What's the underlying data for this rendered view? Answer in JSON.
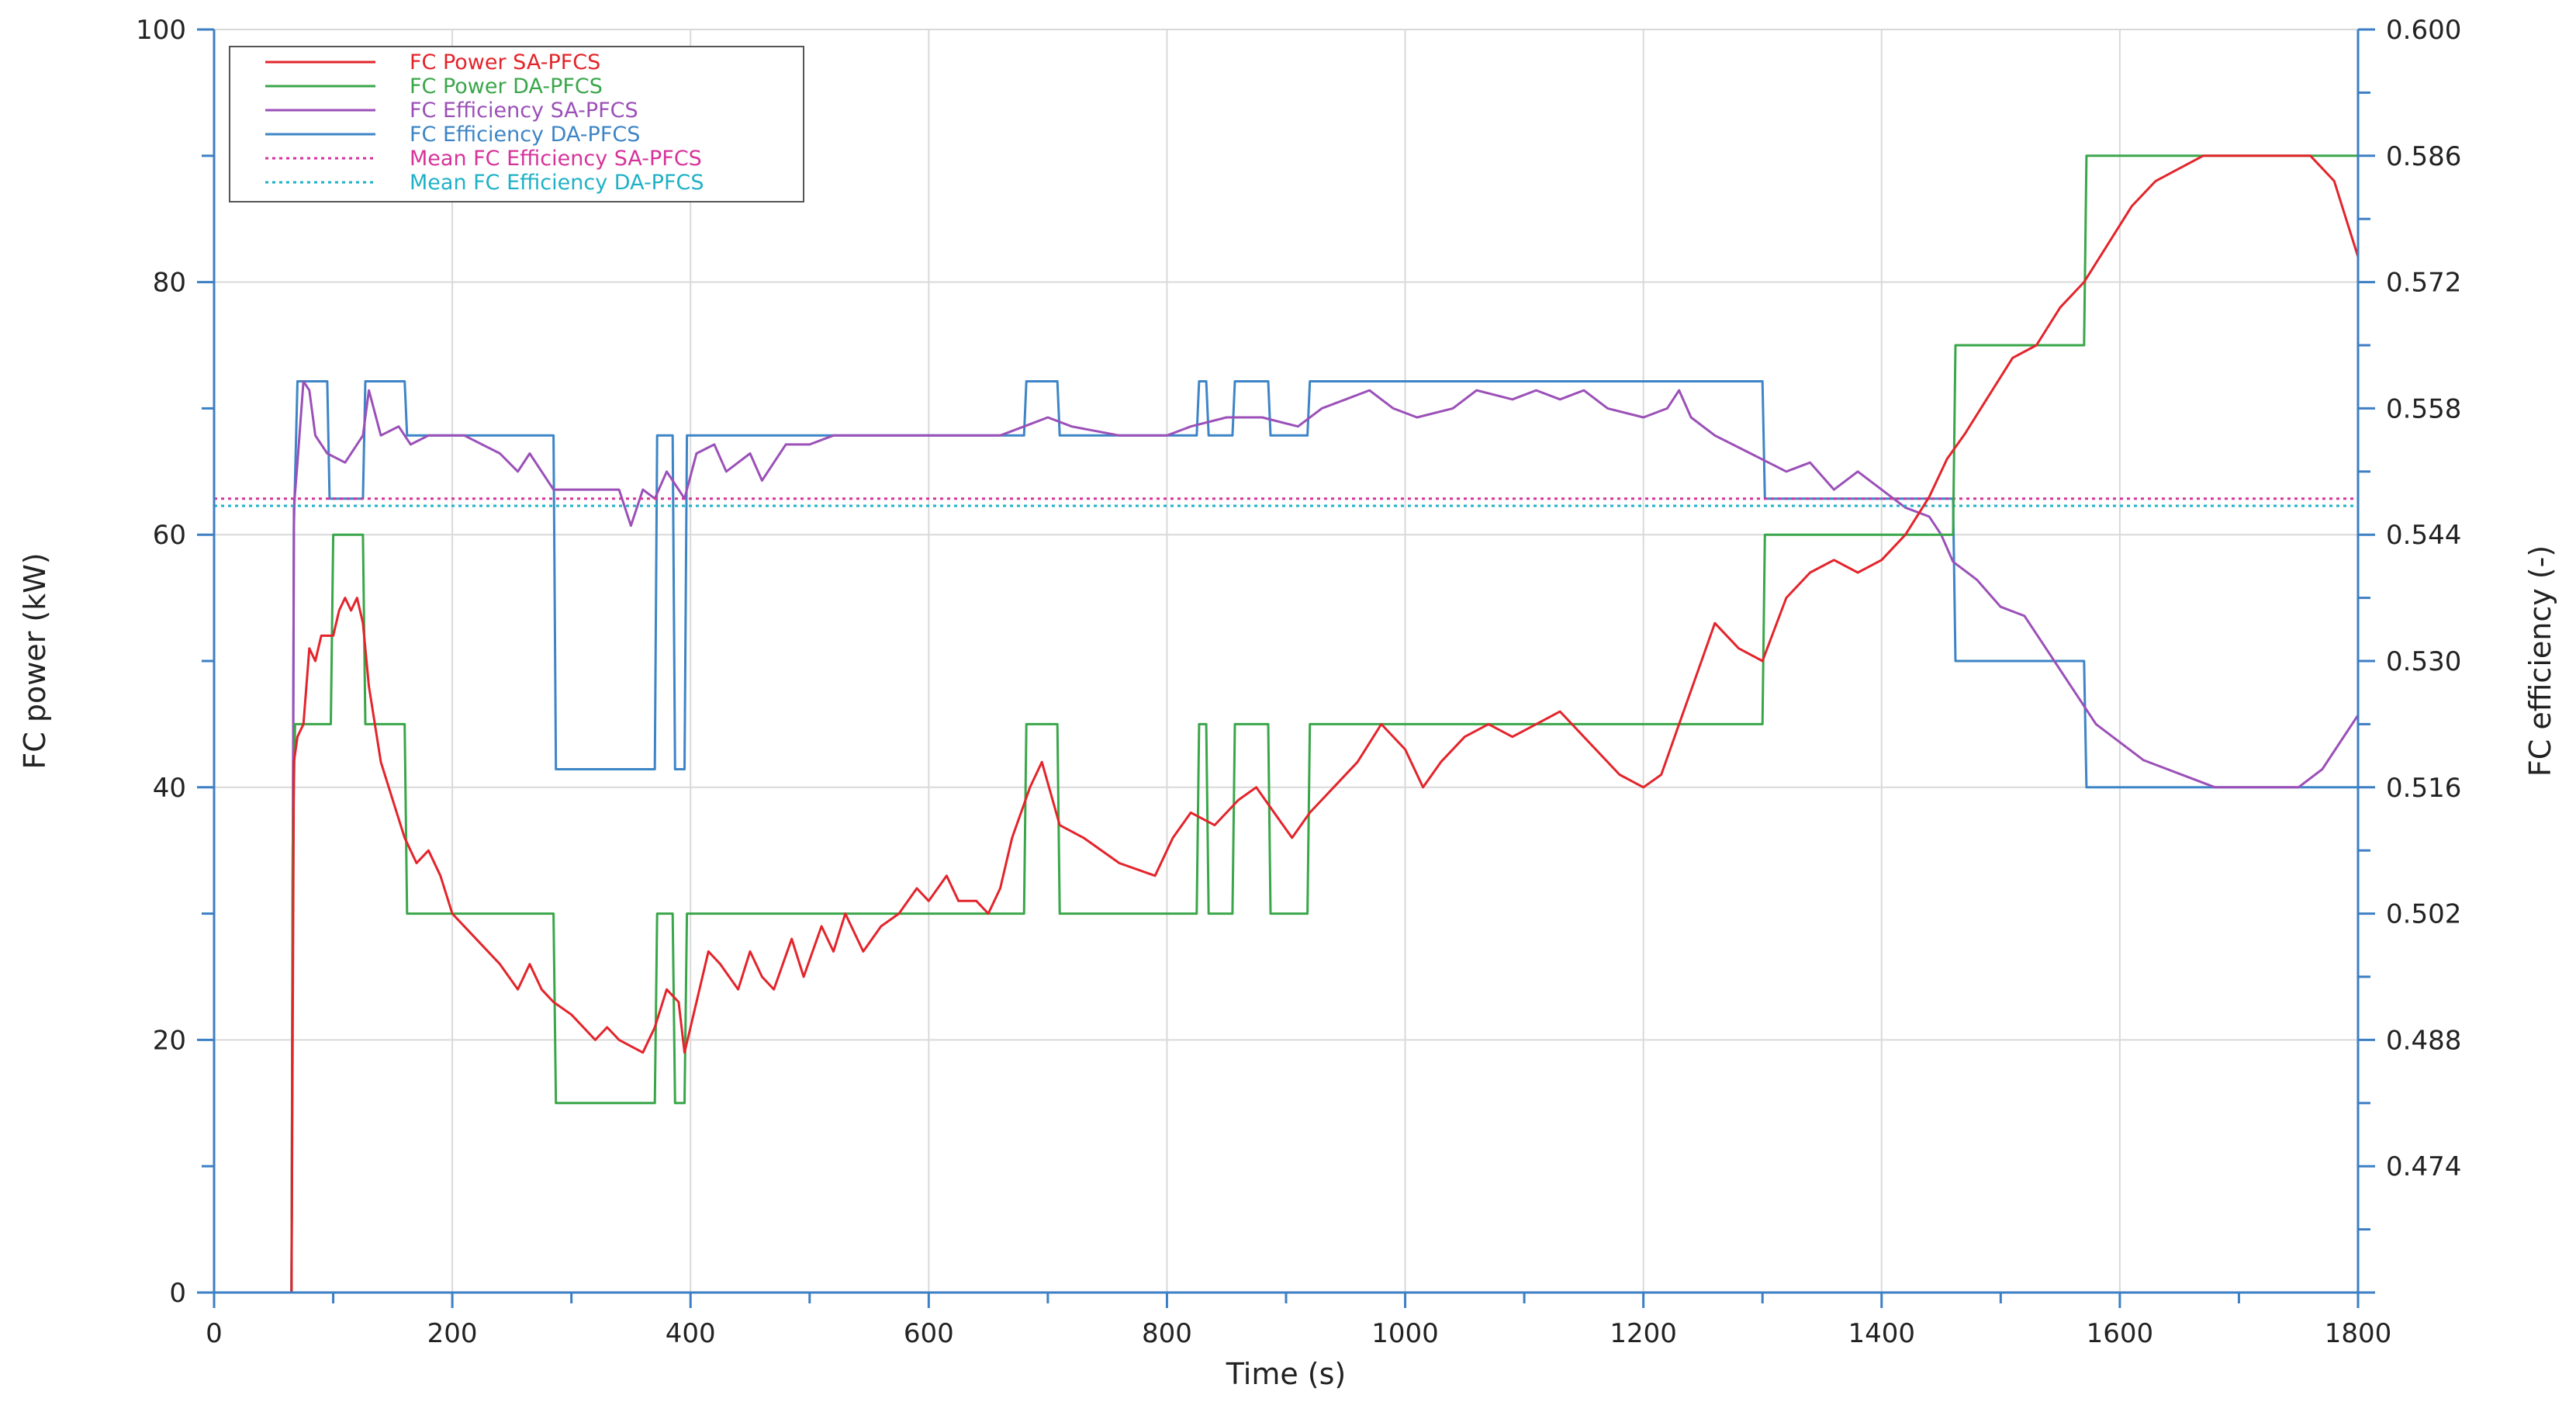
{
  "chart_data": {
    "type": "line",
    "title": "",
    "xlabel": "Time (s)",
    "ylabel_left": "FC power (kW)",
    "ylabel_right": "FC efficiency (-)",
    "xlim": [
      0,
      1800
    ],
    "ylim_left": [
      0,
      100
    ],
    "ylim_right": [
      0.46,
      0.6
    ],
    "x_ticks": [
      0,
      200,
      400,
      600,
      800,
      1000,
      1200,
      1400,
      1600,
      1800
    ],
    "x_tick_labels": [
      "0",
      "200",
      "400",
      "600",
      "800",
      "1000",
      "1200",
      "1400",
      "1600",
      "1800"
    ],
    "y_left_ticks": [
      0,
      20,
      40,
      60,
      80,
      100
    ],
    "y_left_tick_labels": [
      "0",
      "20",
      "40",
      "60",
      "80",
      "100"
    ],
    "y_right_ticks": [
      0.474,
      0.488,
      0.502,
      0.516,
      0.53,
      0.544,
      0.558,
      0.572,
      0.586,
      0.6
    ],
    "y_right_tick_labels": [
      "0.474",
      "0.488",
      "0.502",
      "0.516",
      "0.530",
      "0.544",
      "0.558",
      "0.572",
      "0.586",
      "0.600"
    ],
    "grid": true,
    "legend_position": "top-left",
    "series": [
      {
        "name": "FC Power SA-PFCS",
        "axis": "left",
        "color": "#e3242b",
        "style": "solid",
        "points": [
          [
            0,
            0
          ],
          [
            63,
            0
          ],
          [
            65,
            0
          ],
          [
            67,
            42
          ],
          [
            70,
            44
          ],
          [
            75,
            45
          ],
          [
            80,
            51
          ],
          [
            85,
            50
          ],
          [
            90,
            52
          ],
          [
            100,
            52
          ],
          [
            105,
            54
          ],
          [
            110,
            55
          ],
          [
            115,
            54
          ],
          [
            120,
            55
          ],
          [
            125,
            53
          ],
          [
            130,
            48
          ],
          [
            140,
            42
          ],
          [
            150,
            39
          ],
          [
            160,
            36
          ],
          [
            170,
            34
          ],
          [
            180,
            35
          ],
          [
            190,
            33
          ],
          [
            200,
            30
          ],
          [
            220,
            28
          ],
          [
            240,
            26
          ],
          [
            255,
            24
          ],
          [
            265,
            26
          ],
          [
            275,
            24
          ],
          [
            285,
            23
          ],
          [
            300,
            22
          ],
          [
            320,
            20
          ],
          [
            330,
            21
          ],
          [
            340,
            20
          ],
          [
            360,
            19
          ],
          [
            370,
            21
          ],
          [
            380,
            24
          ],
          [
            390,
            23
          ],
          [
            395,
            19
          ],
          [
            405,
            23
          ],
          [
            415,
            27
          ],
          [
            425,
            26
          ],
          [
            440,
            24
          ],
          [
            450,
            27
          ],
          [
            460,
            25
          ],
          [
            470,
            24
          ],
          [
            485,
            28
          ],
          [
            495,
            25
          ],
          [
            510,
            29
          ],
          [
            520,
            27
          ],
          [
            530,
            30
          ],
          [
            545,
            27
          ],
          [
            560,
            29
          ],
          [
            575,
            30
          ],
          [
            590,
            32
          ],
          [
            600,
            31
          ],
          [
            615,
            33
          ],
          [
            625,
            31
          ],
          [
            640,
            31
          ],
          [
            650,
            30
          ],
          [
            660,
            32
          ],
          [
            670,
            36
          ],
          [
            685,
            40
          ],
          [
            695,
            42
          ],
          [
            710,
            37
          ],
          [
            730,
            36
          ],
          [
            760,
            34
          ],
          [
            790,
            33
          ],
          [
            805,
            36
          ],
          [
            820,
            38
          ],
          [
            840,
            37
          ],
          [
            860,
            39
          ],
          [
            875,
            40
          ],
          [
            890,
            38
          ],
          [
            905,
            36
          ],
          [
            920,
            38
          ],
          [
            940,
            40
          ],
          [
            960,
            42
          ],
          [
            980,
            45
          ],
          [
            1000,
            43
          ],
          [
            1015,
            40
          ],
          [
            1030,
            42
          ],
          [
            1050,
            44
          ],
          [
            1070,
            45
          ],
          [
            1090,
            44
          ],
          [
            1110,
            45
          ],
          [
            1130,
            46
          ],
          [
            1150,
            44
          ],
          [
            1180,
            41
          ],
          [
            1200,
            40
          ],
          [
            1215,
            41
          ],
          [
            1230,
            45
          ],
          [
            1245,
            49
          ],
          [
            1260,
            53
          ],
          [
            1280,
            51
          ],
          [
            1300,
            50
          ],
          [
            1320,
            55
          ],
          [
            1340,
            57
          ],
          [
            1360,
            58
          ],
          [
            1380,
            57
          ],
          [
            1400,
            58
          ],
          [
            1420,
            60
          ],
          [
            1440,
            63
          ],
          [
            1455,
            66
          ],
          [
            1470,
            68
          ],
          [
            1490,
            71
          ],
          [
            1510,
            74
          ],
          [
            1530,
            75
          ],
          [
            1550,
            78
          ],
          [
            1570,
            80
          ],
          [
            1590,
            83
          ],
          [
            1610,
            86
          ],
          [
            1630,
            88
          ],
          [
            1650,
            89
          ],
          [
            1670,
            90
          ],
          [
            1760,
            90
          ],
          [
            1780,
            88
          ],
          [
            1790,
            85
          ],
          [
            1800,
            82
          ]
        ]
      },
      {
        "name": "FC Power DA-PFCS",
        "axis": "left",
        "color": "#3aa64a",
        "style": "solid",
        "points": [
          [
            0,
            0
          ],
          [
            65,
            0
          ],
          [
            66,
            35
          ],
          [
            68,
            45
          ],
          [
            98,
            45
          ],
          [
            100,
            60
          ],
          [
            125,
            60
          ],
          [
            127,
            45
          ],
          [
            160,
            45
          ],
          [
            162,
            30
          ],
          [
            285,
            30
          ],
          [
            287,
            15
          ],
          [
            370,
            15
          ],
          [
            372,
            30
          ],
          [
            385,
            30
          ],
          [
            387,
            15
          ],
          [
            395,
            15
          ],
          [
            397,
            30
          ],
          [
            680,
            30
          ],
          [
            682,
            45
          ],
          [
            708,
            45
          ],
          [
            710,
            30
          ],
          [
            825,
            30
          ],
          [
            827,
            45
          ],
          [
            833,
            45
          ],
          [
            835,
            30
          ],
          [
            855,
            30
          ],
          [
            857,
            45
          ],
          [
            885,
            45
          ],
          [
            887,
            30
          ],
          [
            918,
            30
          ],
          [
            920,
            45
          ],
          [
            1300,
            45
          ],
          [
            1302,
            60
          ],
          [
            1460,
            60
          ],
          [
            1462,
            75
          ],
          [
            1570,
            75
          ],
          [
            1572,
            90
          ],
          [
            1800,
            90
          ]
        ]
      },
      {
        "name": "FC Efficiency SA-PFCS",
        "axis": "right",
        "color": "#9b50b8",
        "style": "solid",
        "points": [
          [
            65,
            0.46
          ],
          [
            67,
            0.547
          ],
          [
            70,
            0.552
          ],
          [
            75,
            0.561
          ],
          [
            80,
            0.56
          ],
          [
            85,
            0.555
          ],
          [
            95,
            0.553
          ],
          [
            110,
            0.552
          ],
          [
            125,
            0.555
          ],
          [
            130,
            0.56
          ],
          [
            140,
            0.555
          ],
          [
            155,
            0.556
          ],
          [
            165,
            0.554
          ],
          [
            180,
            0.555
          ],
          [
            210,
            0.555
          ],
          [
            240,
            0.553
          ],
          [
            255,
            0.551
          ],
          [
            265,
            0.553
          ],
          [
            275,
            0.551
          ],
          [
            285,
            0.549
          ],
          [
            310,
            0.549
          ],
          [
            340,
            0.549
          ],
          [
            350,
            0.545
          ],
          [
            360,
            0.549
          ],
          [
            370,
            0.548
          ],
          [
            380,
            0.551
          ],
          [
            390,
            0.549
          ],
          [
            395,
            0.548
          ],
          [
            405,
            0.553
          ],
          [
            420,
            0.554
          ],
          [
            430,
            0.551
          ],
          [
            440,
            0.552
          ],
          [
            450,
            0.553
          ],
          [
            460,
            0.55
          ],
          [
            470,
            0.552
          ],
          [
            480,
            0.554
          ],
          [
            500,
            0.554
          ],
          [
            520,
            0.555
          ],
          [
            540,
            0.555
          ],
          [
            580,
            0.555
          ],
          [
            620,
            0.555
          ],
          [
            660,
            0.555
          ],
          [
            680,
            0.556
          ],
          [
            700,
            0.557
          ],
          [
            720,
            0.556
          ],
          [
            760,
            0.555
          ],
          [
            800,
            0.555
          ],
          [
            820,
            0.556
          ],
          [
            850,
            0.557
          ],
          [
            880,
            0.557
          ],
          [
            910,
            0.556
          ],
          [
            930,
            0.558
          ],
          [
            950,
            0.559
          ],
          [
            970,
            0.56
          ],
          [
            990,
            0.558
          ],
          [
            1010,
            0.557
          ],
          [
            1040,
            0.558
          ],
          [
            1060,
            0.56
          ],
          [
            1090,
            0.559
          ],
          [
            1110,
            0.56
          ],
          [
            1130,
            0.559
          ],
          [
            1150,
            0.56
          ],
          [
            1170,
            0.558
          ],
          [
            1200,
            0.557
          ],
          [
            1220,
            0.558
          ],
          [
            1230,
            0.56
          ],
          [
            1240,
            0.557
          ],
          [
            1260,
            0.555
          ],
          [
            1290,
            0.553
          ],
          [
            1320,
            0.551
          ],
          [
            1340,
            0.552
          ],
          [
            1360,
            0.549
          ],
          [
            1380,
            0.551
          ],
          [
            1400,
            0.549
          ],
          [
            1420,
            0.547
          ],
          [
            1440,
            0.546
          ],
          [
            1450,
            0.544
          ],
          [
            1460,
            0.541
          ],
          [
            1480,
            0.539
          ],
          [
            1500,
            0.536
          ],
          [
            1520,
            0.535
          ],
          [
            1540,
            0.531
          ],
          [
            1560,
            0.527
          ],
          [
            1580,
            0.523
          ],
          [
            1600,
            0.521
          ],
          [
            1620,
            0.519
          ],
          [
            1640,
            0.518
          ],
          [
            1660,
            0.517
          ],
          [
            1680,
            0.516
          ],
          [
            1750,
            0.516
          ],
          [
            1770,
            0.518
          ],
          [
            1790,
            0.522
          ],
          [
            1800,
            0.524
          ]
        ]
      },
      {
        "name": "FC Efficiency DA-PFCS",
        "axis": "right",
        "color": "#3d85c6",
        "style": "solid",
        "points": [
          [
            65,
            0.46
          ],
          [
            67,
            0.545
          ],
          [
            70,
            0.561
          ],
          [
            95,
            0.561
          ],
          [
            97,
            0.548
          ],
          [
            125,
            0.548
          ],
          [
            127,
            0.561
          ],
          [
            160,
            0.561
          ],
          [
            162,
            0.555
          ],
          [
            285,
            0.555
          ],
          [
            287,
            0.518
          ],
          [
            370,
            0.518
          ],
          [
            372,
            0.555
          ],
          [
            385,
            0.555
          ],
          [
            387,
            0.518
          ],
          [
            395,
            0.518
          ],
          [
            397,
            0.555
          ],
          [
            680,
            0.555
          ],
          [
            682,
            0.561
          ],
          [
            708,
            0.561
          ],
          [
            710,
            0.555
          ],
          [
            825,
            0.555
          ],
          [
            827,
            0.561
          ],
          [
            833,
            0.561
          ],
          [
            835,
            0.555
          ],
          [
            855,
            0.555
          ],
          [
            857,
            0.561
          ],
          [
            885,
            0.561
          ],
          [
            887,
            0.555
          ],
          [
            918,
            0.555
          ],
          [
            920,
            0.561
          ],
          [
            1300,
            0.561
          ],
          [
            1302,
            0.548
          ],
          [
            1460,
            0.548
          ],
          [
            1462,
            0.53
          ],
          [
            1570,
            0.53
          ],
          [
            1572,
            0.516
          ],
          [
            1800,
            0.516
          ]
        ]
      },
      {
        "name": "Mean FC Efficiency SA-PFCS",
        "axis": "right",
        "color": "#d6339a",
        "style": "dotted",
        "points": [
          [
            0,
            0.548
          ],
          [
            1800,
            0.548
          ]
        ]
      },
      {
        "name": "Mean FC Efficiency DA-PFCS",
        "axis": "right",
        "color": "#1fb1c6",
        "style": "dotted",
        "points": [
          [
            0,
            0.5472
          ],
          [
            1800,
            0.5472
          ]
        ]
      }
    ]
  }
}
